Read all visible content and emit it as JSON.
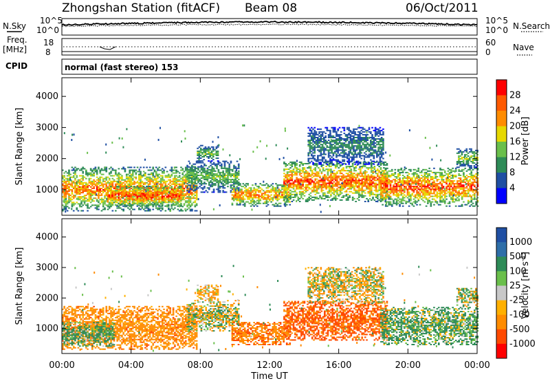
{
  "header": {
    "station": "Zhongshan Station (fitACF)",
    "beam": "Beam 08",
    "date": "06/Oct/2011"
  },
  "aux_panels": {
    "nsky_label": "N.Sky",
    "nsearch_label": "N.Search",
    "nsky_ticks": [
      "10^5",
      "10^0"
    ],
    "nsearch_ticks": [
      "10^5",
      "10^0"
    ],
    "freq_label_top": "Freq.",
    "freq_label_unit": "[MHz]",
    "freq_ticks": [
      "18",
      "8"
    ],
    "nave_label": "Nave",
    "nave_ticks": [
      "60",
      "0"
    ],
    "cpid_label": "CPID",
    "cpid_value": "normal (fast stereo) 153"
  },
  "colors": {
    "power_scale": [
      "#0000ff",
      "#1f4fa3",
      "#2e8b57",
      "#6abf4b",
      "#e6d800",
      "#ff8c00",
      "#ff5a00",
      "#ff0000"
    ],
    "velocity_scale": [
      "#1f4fa3",
      "#2e6ea8",
      "#2e8b57",
      "#6abf4b",
      "#c8c8c8",
      "#ffb000",
      "#ff8c00",
      "#ff4a00",
      "#ff0000"
    ]
  },
  "chart_data": [
    {
      "type": "heatmap",
      "name_key": "power",
      "ylabel": "Slant Range [km]",
      "xlabel": "",
      "x_ticks": [
        "00:00",
        "04:00",
        "08:00",
        "12:00",
        "16:00",
        "20:00",
        "00:00"
      ],
      "x_range_hours": [
        0,
        24
      ],
      "y_ticks": [
        1000,
        2000,
        3000,
        4000
      ],
      "ylim": [
        180,
        4600
      ],
      "colorbar_label": "Power [dB]",
      "colorbar_ticks": [
        "28",
        "24",
        "20",
        "16",
        "12",
        "8",
        "4"
      ],
      "colorbar_range": [
        0,
        32
      ],
      "scatter_echo_regions": [
        {
          "t0": 0.0,
          "t1": 7.8,
          "r0": 300,
          "r1": 1700,
          "peak": 24
        },
        {
          "t0": 2.6,
          "t1": 6.9,
          "r0": 450,
          "r1": 1100,
          "peak": 28
        },
        {
          "t0": 7.2,
          "t1": 10.2,
          "r0": 900,
          "r1": 1900,
          "peak": 14
        },
        {
          "t0": 7.8,
          "t1": 9.0,
          "r0": 1900,
          "r1": 2400,
          "peak": 14
        },
        {
          "t0": 9.8,
          "t1": 13.2,
          "r0": 450,
          "r1": 1200,
          "peak": 24
        },
        {
          "t0": 12.8,
          "t1": 18.8,
          "r0": 600,
          "r1": 1900,
          "peak": 26
        },
        {
          "t0": 14.2,
          "t1": 18.6,
          "r0": 1800,
          "r1": 3000,
          "peak": 10
        },
        {
          "t0": 18.4,
          "t1": 24.0,
          "r0": 450,
          "r1": 1700,
          "peak": 26
        },
        {
          "t0": 22.8,
          "t1": 24.0,
          "r0": 1700,
          "r1": 2300,
          "peak": 16
        }
      ]
    },
    {
      "type": "heatmap",
      "name_key": "velocity",
      "ylabel": "Slant Range [km]",
      "xlabel": "Time UT",
      "x_ticks": [
        "00:00",
        "04:00",
        "08:00",
        "12:00",
        "16:00",
        "20:00",
        "00:00"
      ],
      "x_range_hours": [
        0,
        24
      ],
      "y_ticks": [
        1000,
        2000,
        3000,
        4000
      ],
      "ylim": [
        180,
        4600
      ],
      "colorbar_label": "Velocity [m s^-1]",
      "colorbar_ticks": [
        "1000",
        "500",
        "100",
        "25",
        "-25",
        "-100",
        "-500",
        "-1000"
      ],
      "scatter_echo_regions": [
        {
          "t0": 0.0,
          "t1": 7.8,
          "r0": 300,
          "r1": 1700,
          "vel": -300
        },
        {
          "t0": 0.0,
          "t1": 3.0,
          "r0": 400,
          "r1": 1200,
          "vel": 200
        },
        {
          "t0": 7.2,
          "t1": 10.2,
          "r0": 900,
          "r1": 1900,
          "vel": 0
        },
        {
          "t0": 7.8,
          "t1": 9.0,
          "r0": 1900,
          "r1": 2400,
          "vel": -150
        },
        {
          "t0": 9.8,
          "t1": 13.2,
          "r0": 450,
          "r1": 1200,
          "vel": -400
        },
        {
          "t0": 12.8,
          "t1": 18.8,
          "r0": 600,
          "r1": 1900,
          "vel": -600
        },
        {
          "t0": 14.2,
          "t1": 18.6,
          "r0": 1800,
          "r1": 3000,
          "vel": -50
        },
        {
          "t0": 18.4,
          "t1": 24.0,
          "r0": 450,
          "r1": 1700,
          "vel": 150
        },
        {
          "t0": 22.8,
          "t1": 24.0,
          "r0": 1700,
          "r1": 2300,
          "vel": 20
        }
      ]
    }
  ]
}
